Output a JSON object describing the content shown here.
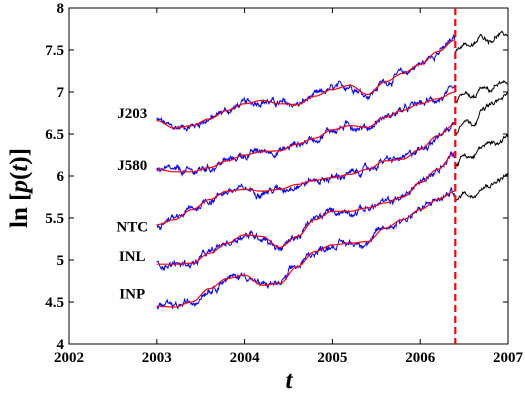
{
  "chart_data": {
    "type": "line",
    "ylabel_parts": [
      "ln [",
      "p",
      "(",
      "t",
      ")]"
    ],
    "xlabel": "t",
    "xlim": [
      2002,
      2007
    ],
    "ylim": [
      4,
      8
    ],
    "x_ticks": [
      "2002",
      "2003",
      "2004",
      "2005",
      "2006",
      "2007"
    ],
    "y_ticks": [
      "4",
      "4.5",
      "5",
      "5.5",
      "6",
      "6.5",
      "7",
      "7.5",
      "8"
    ],
    "vline_x": 2006.4,
    "colors": {
      "data": "#0000ff",
      "fit": "#ff0000",
      "prediction": "#000000",
      "vline": "#ff0000"
    },
    "series": [
      {
        "name": "J203",
        "label_pos": [
          2002.72,
          6.75
        ],
        "x": [
          2003.0,
          2003.2,
          2003.4,
          2003.6,
          2003.8,
          2004.0,
          2004.2,
          2004.4,
          2004.6,
          2004.8,
          2005.0,
          2005.2,
          2005.4,
          2005.6,
          2005.8,
          2006.0,
          2006.2,
          2006.4
        ],
        "fit": [
          6.66,
          6.57,
          6.6,
          6.68,
          6.78,
          6.86,
          6.9,
          6.86,
          6.85,
          6.95,
          7.03,
          7.08,
          6.97,
          7.12,
          7.22,
          7.33,
          7.48,
          7.62
        ],
        "pred_x": [
          2006.4,
          2006.5,
          2006.6,
          2006.7,
          2006.8,
          2006.9,
          2007.0
        ],
        "pred": [
          7.5,
          7.58,
          7.55,
          7.66,
          7.62,
          7.68,
          7.68
        ]
      },
      {
        "name": "J580",
        "label_pos": [
          2002.72,
          6.13
        ],
        "x": [
          2003.0,
          2003.2,
          2003.4,
          2003.6,
          2003.8,
          2004.0,
          2004.2,
          2004.4,
          2004.6,
          2004.8,
          2005.0,
          2005.2,
          2005.4,
          2005.6,
          2005.8,
          2006.0,
          2006.2,
          2006.4
        ],
        "fit": [
          6.08,
          6.05,
          6.05,
          6.1,
          6.18,
          6.25,
          6.29,
          6.3,
          6.38,
          6.45,
          6.55,
          6.6,
          6.58,
          6.7,
          6.78,
          6.86,
          6.92,
          7.0
        ],
        "pred_x": [
          2006.4,
          2006.5,
          2006.6,
          2006.7,
          2006.8,
          2006.9,
          2007.0
        ],
        "pred": [
          6.88,
          6.98,
          6.92,
          7.04,
          7.02,
          7.1,
          7.08
        ]
      },
      {
        "name": "NTC",
        "label_pos": [
          2002.72,
          5.4
        ],
        "x": [
          2003.0,
          2003.2,
          2003.4,
          2003.6,
          2003.8,
          2004.0,
          2004.2,
          2004.4,
          2004.6,
          2004.8,
          2005.0,
          2005.2,
          2005.4,
          2005.6,
          2005.8,
          2006.0,
          2006.2,
          2006.4
        ],
        "fit": [
          5.42,
          5.48,
          5.6,
          5.72,
          5.82,
          5.84,
          5.82,
          5.84,
          5.9,
          5.95,
          5.98,
          6.02,
          6.08,
          6.18,
          6.2,
          6.32,
          6.48,
          6.62
        ],
        "pred_x": [
          2006.4,
          2006.5,
          2006.6,
          2006.7,
          2006.8,
          2006.9,
          2007.0
        ],
        "pred": [
          6.52,
          6.68,
          6.62,
          6.78,
          6.84,
          6.9,
          6.98
        ]
      },
      {
        "name": "INL",
        "label_pos": [
          2002.72,
          5.05
        ],
        "x": [
          2003.0,
          2003.2,
          2003.4,
          2003.6,
          2003.8,
          2004.0,
          2004.2,
          2004.4,
          2004.6,
          2004.8,
          2005.0,
          2005.2,
          2005.4,
          2005.6,
          2005.8,
          2006.0,
          2006.2,
          2006.4
        ],
        "fit": [
          4.95,
          4.95,
          4.96,
          5.08,
          5.2,
          5.3,
          5.28,
          5.15,
          5.28,
          5.48,
          5.58,
          5.58,
          5.62,
          5.68,
          5.75,
          5.92,
          6.08,
          6.28
        ],
        "pred_x": [
          2006.4,
          2006.5,
          2006.6,
          2006.7,
          2006.8,
          2006.9,
          2007.0
        ],
        "pred": [
          6.12,
          6.25,
          6.22,
          6.35,
          6.38,
          6.42,
          6.48
        ]
      },
      {
        "name": "INP",
        "label_pos": [
          2002.72,
          4.6
        ],
        "x": [
          2003.0,
          2003.2,
          2003.4,
          2003.6,
          2003.8,
          2004.0,
          2004.2,
          2004.4,
          2004.6,
          2004.8,
          2005.0,
          2005.2,
          2005.4,
          2005.6,
          2005.8,
          2006.0,
          2006.2,
          2006.4
        ],
        "fit": [
          4.45,
          4.44,
          4.5,
          4.66,
          4.78,
          4.82,
          4.7,
          4.72,
          4.92,
          5.1,
          5.18,
          5.2,
          5.22,
          5.38,
          5.48,
          5.6,
          5.72,
          5.82
        ],
        "pred_x": [
          2006.4,
          2006.5,
          2006.6,
          2006.7,
          2006.8,
          2006.9,
          2007.0
        ],
        "pred": [
          5.68,
          5.8,
          5.76,
          5.88,
          5.9,
          5.96,
          6.02
        ]
      }
    ]
  }
}
